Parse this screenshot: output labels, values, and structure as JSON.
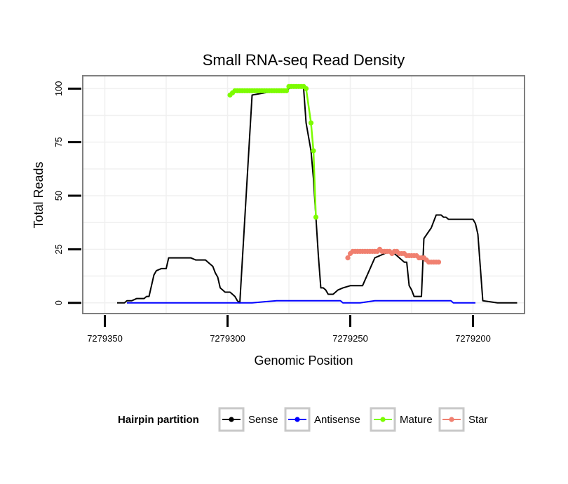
{
  "chart_data": {
    "type": "line",
    "title": "Small RNA-seq Read Density",
    "xlabel": "Genomic Position",
    "ylabel": "Total Reads",
    "x_reversed": true,
    "xlim": [
      7279179,
      7279359
    ],
    "ylim": [
      -5,
      106
    ],
    "x_ticks": [
      7279350,
      7279300,
      7279250,
      7279200
    ],
    "x_tick_labels": [
      "7279350",
      "7279300",
      "7279250",
      "7279200"
    ],
    "y_ticks": [
      0,
      25,
      50,
      75,
      100
    ],
    "y_tick_labels": [
      "0",
      "25",
      "50",
      "75",
      "100"
    ],
    "grid": true,
    "legend": {
      "title": "Hairpin partition",
      "position": "bottom",
      "entries": [
        "Sense",
        "Antisense",
        "Mature",
        "Star"
      ]
    },
    "series": [
      {
        "name": "Sense",
        "color": "#000000",
        "markers": false,
        "x": [
          7279345,
          7279342,
          7279341,
          7279339,
          7279337,
          7279335,
          7279334,
          7279333,
          7279332,
          7279331,
          7279330,
          7279329,
          7279327,
          7279326,
          7279325,
          7279324,
          7279320,
          7279317,
          7279315,
          7279313,
          7279312,
          7279311,
          7279310,
          7279309,
          7279308,
          7279306,
          7279305,
          7279304,
          7279303,
          7279302,
          7279301,
          7279299,
          7279298,
          7279297,
          7279296,
          7279295,
          7279290,
          7279285,
          7279280,
          7279277,
          7279275,
          7279273,
          7279272,
          7279271,
          7279270,
          7279269,
          7279268,
          7279266,
          7279265,
          7279264,
          7279263,
          7279262,
          7279261,
          7279260,
          7279259,
          7279258,
          7279257,
          7279256,
          7279255,
          7279253,
          7279250,
          7279245,
          7279240,
          7279236,
          7279234,
          7279233,
          7279232,
          7279231,
          7279230,
          7279229,
          7279228,
          7279227,
          7279226,
          7279225,
          7279224,
          7279221,
          7279220,
          7279217,
          7279215,
          7279213,
          7279212,
          7279211,
          7279210,
          7279209,
          7279205,
          7279202,
          7279201,
          7279200,
          7279199,
          7279198,
          7279196,
          7279190,
          7279185,
          7279182
        ],
        "y": [
          0,
          0,
          1,
          1,
          2,
          2,
          2,
          3,
          3,
          8,
          13,
          15,
          16,
          16,
          16,
          21,
          21,
          21,
          21,
          20,
          20,
          20,
          20,
          20,
          19,
          17,
          14,
          12,
          7,
          6,
          5,
          5,
          4,
          3,
          1,
          0,
          97,
          98,
          99,
          99,
          100,
          101,
          101,
          101,
          101,
          100,
          84,
          71,
          58,
          40,
          22,
          7,
          7,
          6,
          4,
          4,
          4,
          5,
          6,
          7,
          8,
          8,
          21,
          23,
          24,
          24,
          23,
          22,
          21,
          20,
          19,
          19,
          8,
          6,
          3,
          3,
          30,
          35,
          41,
          41,
          40,
          40,
          39,
          39,
          39,
          39,
          39,
          39,
          37,
          32,
          1,
          0,
          0,
          0
        ]
      },
      {
        "name": "Antisense",
        "color": "#0000ff",
        "markers": false,
        "x": [
          7279341,
          7279300,
          7279299,
          7279290,
          7279280,
          7279268,
          7279254,
          7279253,
          7279246,
          7279240,
          7279223,
          7279209,
          7279208,
          7279199
        ],
        "y": [
          0,
          0,
          0,
          0,
          1,
          1,
          1,
          0,
          0,
          1,
          1,
          1,
          0,
          0
        ]
      },
      {
        "name": "Mature",
        "color": "#7cfc00",
        "markers": true,
        "x": [
          7279299,
          7279298,
          7279297,
          7279296,
          7279295,
          7279294,
          7279293,
          7279292,
          7279291,
          7279290,
          7279289,
          7279288,
          7279287,
          7279286,
          7279285,
          7279284,
          7279283,
          7279282,
          7279281,
          7279280,
          7279279,
          7279278,
          7279277,
          7279276,
          7279275,
          7279274,
          7279273,
          7279272,
          7279271,
          7279270,
          7279269,
          7279268,
          7279266,
          7279265,
          7279264
        ],
        "y": [
          97,
          98,
          99,
          99,
          99,
          99,
          99,
          99,
          99,
          99,
          99,
          99,
          99,
          99,
          99,
          99,
          99,
          99,
          99,
          99,
          99,
          99,
          99,
          99,
          101,
          101,
          101,
          101,
          101,
          101,
          101,
          100,
          84,
          71,
          40
        ]
      },
      {
        "name": "Star",
        "color": "#f08070",
        "markers": true,
        "x": [
          7279251,
          7279250,
          7279249,
          7279248,
          7279247,
          7279246,
          7279245,
          7279244,
          7279243,
          7279242,
          7279241,
          7279240,
          7279239,
          7279238,
          7279237,
          7279236,
          7279235,
          7279234,
          7279233,
          7279232,
          7279231,
          7279230,
          7279229,
          7279228,
          7279227,
          7279226,
          7279225,
          7279224,
          7279223,
          7279222,
          7279221,
          7279220,
          7279219,
          7279218,
          7279217,
          7279216,
          7279215,
          7279214
        ],
        "y": [
          21,
          23,
          24,
          24,
          24,
          24,
          24,
          24,
          24,
          24,
          24,
          24,
          24,
          25,
          24,
          24,
          24,
          24,
          23,
          24,
          24,
          23,
          23,
          23,
          22,
          22,
          22,
          22,
          22,
          21,
          21,
          21,
          20,
          19,
          19,
          19,
          19,
          19
        ]
      }
    ]
  }
}
